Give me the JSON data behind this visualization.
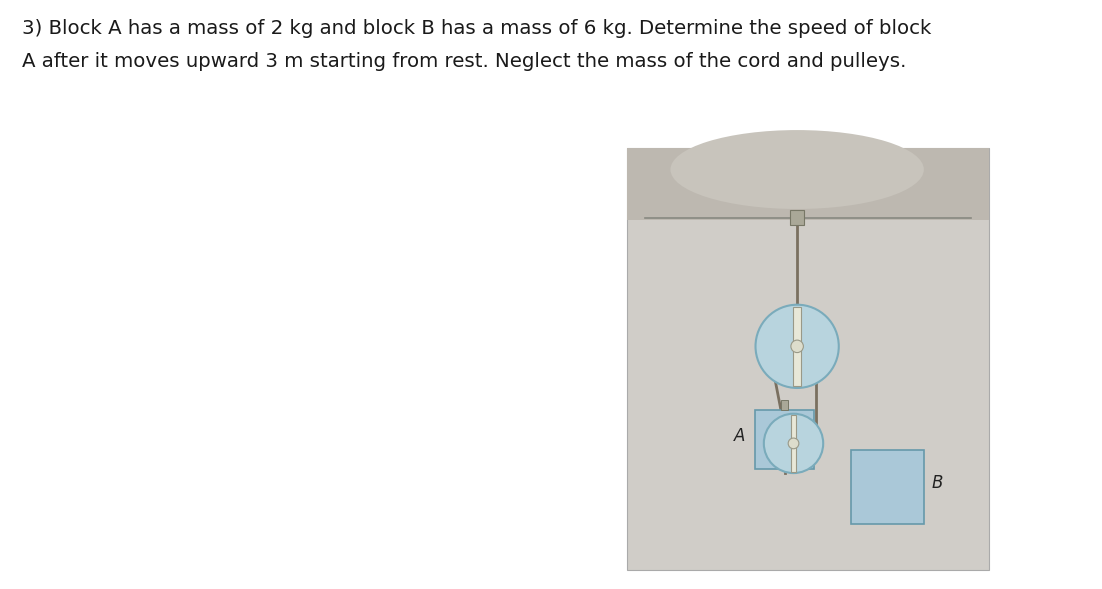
{
  "background_color": "#ffffff",
  "text_line1": "3) Block A has a mass of 2 kg and block B has a mass of 6 kg. Determine the speed of block",
  "text_line2": "A after it moves upward 3 m starting from rest. Neglect the mass of the cord and pulleys.",
  "text_fontsize": 14.2,
  "diagram_bg": "#d0cdc8",
  "ceiling_bg": "#bdb8b0",
  "cord_color": "#7a7060",
  "pulley_fill": "#b8d4de",
  "pulley_edge": "#7aabbb",
  "block_fill": "#aac8d8",
  "block_edge": "#6699aa",
  "axle_fill": "#e8e8d8",
  "axle_edge": "#999988",
  "mount_fill": "#aaa898",
  "mount_edge": "#777766",
  "label_color": "#222222",
  "label_fontsize": 12
}
